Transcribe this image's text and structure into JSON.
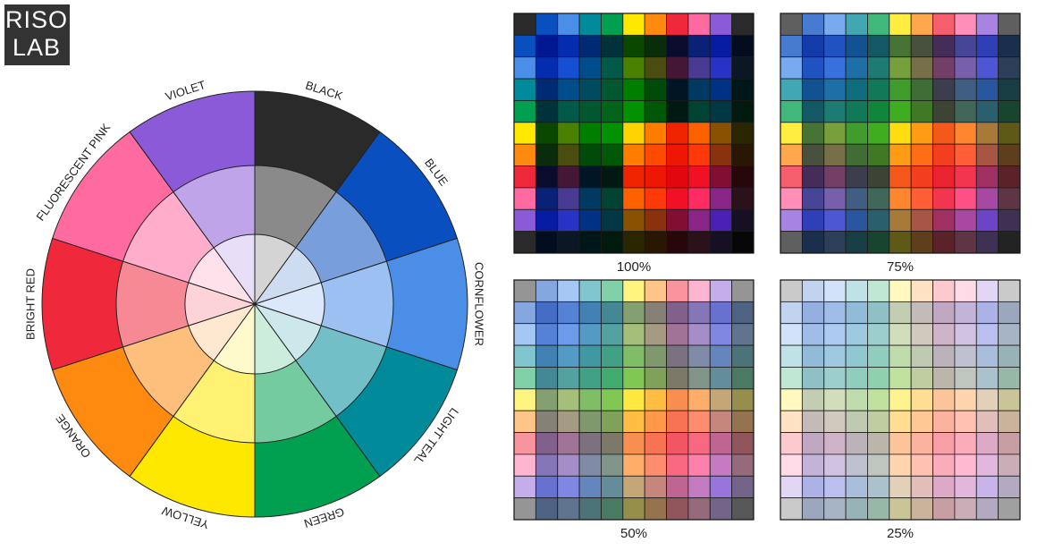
{
  "logo": {
    "line1": "RISO",
    "line2": "LAB"
  },
  "wheel": {
    "labels": [
      "BLACK",
      "BLUE",
      "CORNFLOWER",
      "LIGHT TEAL",
      "GREEN",
      "YELLOW",
      "ORANGE",
      "BRIGHT RED",
      "FLUORESCENT PINK",
      "VIOLET"
    ]
  },
  "grids": [
    {
      "tint": 100,
      "label": "100%"
    },
    {
      "tint": 75,
      "label": "75%"
    },
    {
      "tint": 50,
      "label": "50%"
    },
    {
      "tint": 25,
      "label": "25%"
    }
  ]
}
